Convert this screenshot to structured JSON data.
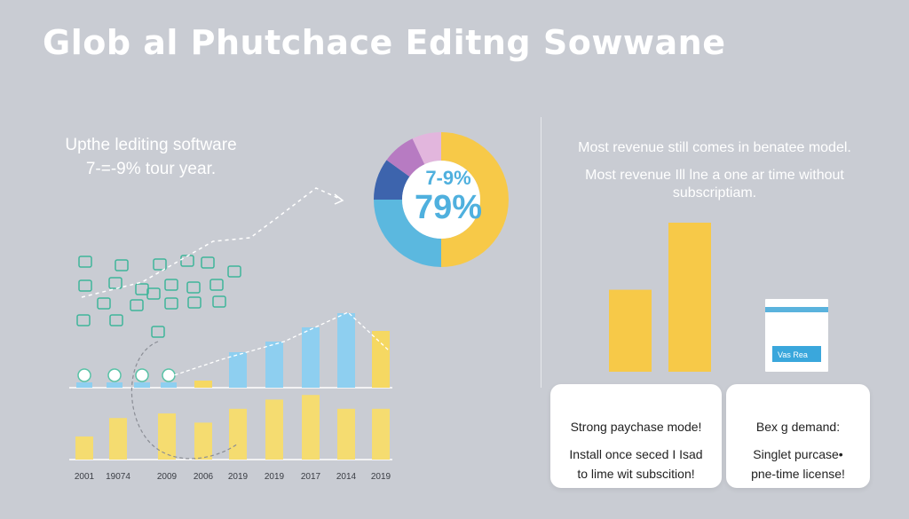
{
  "title": "Glob al Phutchace Editng Sowwane",
  "subtitle": [
    "Upthe lediting software",
    "7-=-9% tour year."
  ],
  "donut": {
    "label_top": "7-9%",
    "label_main": "79%",
    "slices": [
      {
        "value": 50,
        "color": "#f7c948"
      },
      {
        "value": 25,
        "color": "#5bb8df"
      },
      {
        "value": 10,
        "color": "#3d64ad"
      },
      {
        "value": 8,
        "color": "#b77bc2"
      },
      {
        "value": 7,
        "color": "#e2b6dd"
      }
    ]
  },
  "right_notes": {
    "line1": "Most revenue still comes in benatee model.",
    "line2": [
      "Most revenue Ill lne a one ar time without",
      "subscriptiam."
    ]
  },
  "right_panel": {
    "bars": [
      55,
      100
    ],
    "bar_color": "#f7c948",
    "badge_label": "Vas Rea"
  },
  "cards": [
    {
      "heading": "Strong paychase mode!",
      "lines": [
        "Install once seced I Isad",
        "to lime wit subscition!"
      ]
    },
    {
      "heading": "Bex g demand:",
      "lines": [
        "Singlet purcase•",
        "pne-time license!"
      ]
    }
  ],
  "chart_data": {
    "type": "bar",
    "categories": [
      "2001",
      "19074",
      "2009",
      "2006",
      "2019",
      "2019",
      "2017",
      "2014",
      "2019"
    ],
    "upper_series": {
      "values": [
        null,
        null,
        null,
        2,
        10,
        13,
        17,
        21,
        16
      ]
    },
    "lower_series": {
      "values": [
        5,
        9,
        10,
        8,
        11,
        13,
        14,
        11,
        11
      ]
    },
    "colors": {
      "upper": "#8ecff0",
      "upper_highlight": "#f5d862",
      "lower": "#f5dc70"
    }
  }
}
